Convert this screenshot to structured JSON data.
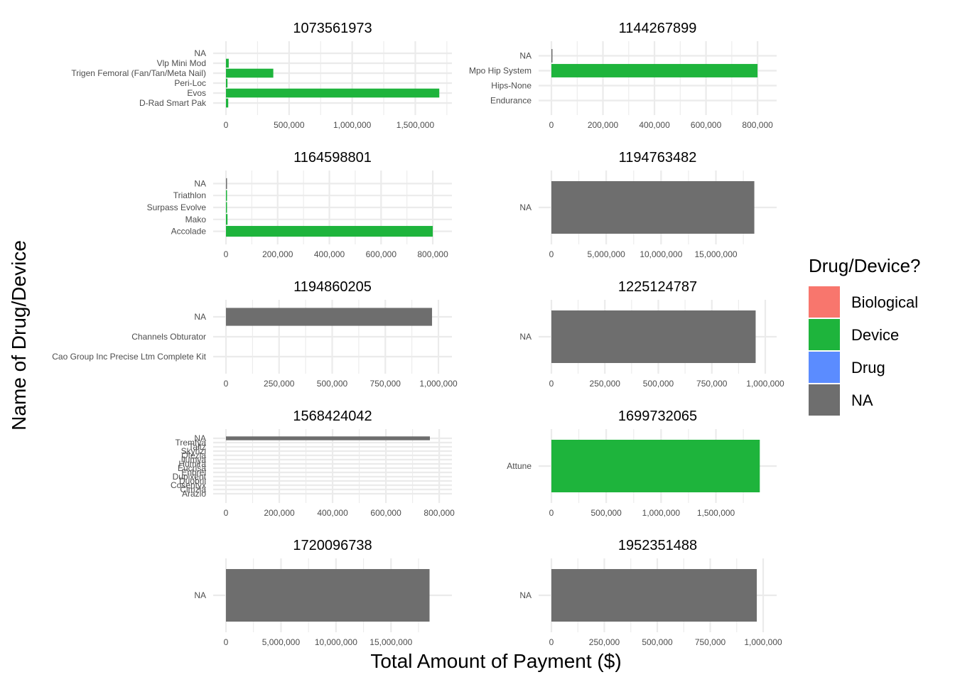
{
  "chart_data": {
    "type": "bar",
    "orientation": "horizontal",
    "xlabel": "Total Amount of Payment ($)",
    "ylabel": "Name of Drug/Device",
    "legend": {
      "title": "Drug/Device?",
      "position": "right",
      "items": [
        {
          "label": "Biological",
          "color": "#F8766D"
        },
        {
          "label": "Device",
          "color": "#1EB43C"
        },
        {
          "label": "Drug",
          "color": "#5B8CFF"
        },
        {
          "label": "NA",
          "color": "#6E6E6E"
        }
      ]
    },
    "grid": true,
    "panels": [
      {
        "title": "1073561973",
        "xlim": [
          0,
          1700000
        ],
        "ticks": [
          0,
          500000,
          1000000,
          1500000
        ],
        "tick_labels": [
          "0",
          "500,000",
          "1,000,000",
          "1,500,000"
        ],
        "bars": [
          {
            "category": "NA",
            "value": 0,
            "type": "NA"
          },
          {
            "category": "Vlp Mini Mod",
            "value": 22000,
            "type": "Device"
          },
          {
            "category": "Trigen Femoral (Fan/Tan/Meta Nail)",
            "value": 375000,
            "type": "Device"
          },
          {
            "category": "Peri-Loc",
            "value": 12000,
            "type": "Device"
          },
          {
            "category": "Evos",
            "value": 1690000,
            "type": "Device"
          },
          {
            "category": "D-Rad Smart Pak",
            "value": 18000,
            "type": "Device"
          }
        ]
      },
      {
        "title": "1144267899",
        "xlim": [
          0,
          830000
        ],
        "ticks": [
          0,
          200000,
          400000,
          600000,
          800000
        ],
        "tick_labels": [
          "0",
          "200,000",
          "400,000",
          "600,000",
          "800,000"
        ],
        "bars": [
          {
            "category": "NA",
            "value": 2000,
            "type": "NA"
          },
          {
            "category": "Mpo Hip System",
            "value": 800000,
            "type": "Device"
          },
          {
            "category": "Hips-None",
            "value": 0,
            "type": "Device"
          },
          {
            "category": "Endurance",
            "value": 0,
            "type": "Device"
          }
        ]
      },
      {
        "title": "1164598801",
        "xlim": [
          0,
          830000
        ],
        "ticks": [
          0,
          200000,
          400000,
          600000,
          800000
        ],
        "tick_labels": [
          "0",
          "200,000",
          "400,000",
          "600,000",
          "800,000"
        ],
        "bars": [
          {
            "category": "NA",
            "value": 1000,
            "type": "NA"
          },
          {
            "category": "Triathlon",
            "value": 3000,
            "type": "Device"
          },
          {
            "category": "Surpass Evolve",
            "value": 4000,
            "type": "Device"
          },
          {
            "category": "Mako",
            "value": 6000,
            "type": "Device"
          },
          {
            "category": "Accolade",
            "value": 800000,
            "type": "Device"
          }
        ]
      },
      {
        "title": "1194763482",
        "xlim": [
          0,
          19500000
        ],
        "ticks": [
          0,
          5000000,
          10000000,
          15000000
        ],
        "tick_labels": [
          "0",
          "5,000,000",
          "10,000,000",
          "15,000,000"
        ],
        "bars": [
          {
            "category": "NA",
            "value": 18500000,
            "type": "NA"
          }
        ]
      },
      {
        "title": "1194860205",
        "xlim": [
          0,
          1010000
        ],
        "ticks": [
          0,
          250000,
          500000,
          750000,
          1000000
        ],
        "tick_labels": [
          "0",
          "250,000",
          "500,000",
          "750,000",
          "1,000,000"
        ],
        "bars": [
          {
            "category": "NA",
            "value": 970000,
            "type": "NA"
          },
          {
            "category": "Channels Obturator",
            "value": 0,
            "type": "Device"
          },
          {
            "category": "Cao Group Inc Precise Ltm Complete Kit",
            "value": 0,
            "type": "Device"
          }
        ]
      },
      {
        "title": "1225124787",
        "xlim": [
          0,
          1000000
        ],
        "ticks": [
          0,
          250000,
          500000,
          750000,
          1000000
        ],
        "tick_labels": [
          "0",
          "250,000",
          "500,000",
          "750,000",
          "1,000,000"
        ],
        "bars": [
          {
            "category": "NA",
            "value": 955000,
            "type": "NA"
          }
        ]
      },
      {
        "title": "1568424042",
        "xlim": [
          0,
          805000
        ],
        "ticks": [
          0,
          200000,
          400000,
          600000,
          800000
        ],
        "tick_labels": [
          "0",
          "200,000",
          "400,000",
          "600,000",
          "800,000"
        ],
        "bars": [
          {
            "category": "NA",
            "value": 765000,
            "type": "NA"
          },
          {
            "category": "Tremfya",
            "value": 0,
            "type": "Drug"
          },
          {
            "category": "Taltz",
            "value": 0,
            "type": "Drug"
          },
          {
            "category": "Skyrizi",
            "value": 0,
            "type": "Drug"
          },
          {
            "category": "Otezla",
            "value": 0,
            "type": "Drug"
          },
          {
            "category": "Ilumya",
            "value": 0,
            "type": "Drug"
          },
          {
            "category": "Humira",
            "value": 0,
            "type": "Drug"
          },
          {
            "category": "Eucrisa",
            "value": 0,
            "type": "Drug"
          },
          {
            "category": "Enbrel",
            "value": 0,
            "type": "Drug"
          },
          {
            "category": "Dupixent",
            "value": 0,
            "type": "Drug"
          },
          {
            "category": "Duobrii",
            "value": 0,
            "type": "Drug"
          },
          {
            "category": "Cosentyx",
            "value": 0,
            "type": "Drug"
          },
          {
            "category": "Cimzia",
            "value": 0,
            "type": "Drug"
          },
          {
            "category": "Arazlo",
            "value": 0,
            "type": "Drug"
          }
        ]
      },
      {
        "title": "1699732065",
        "xlim": [
          0,
          1950000
        ],
        "ticks": [
          0,
          500000,
          1000000,
          1500000
        ],
        "tick_labels": [
          "0",
          "500,000",
          "1,000,000",
          "1,500,000"
        ],
        "bars": [
          {
            "category": "Attune",
            "value": 1900000,
            "type": "Device"
          }
        ]
      },
      {
        "title": "1720096738",
        "xlim": [
          0,
          19500000
        ],
        "ticks": [
          0,
          5000000,
          10000000,
          15000000
        ],
        "tick_labels": [
          "0",
          "5,000,000",
          "10,000,000",
          "15,000,000"
        ],
        "bars": [
          {
            "category": "NA",
            "value": 18500000,
            "type": "NA"
          }
        ]
      },
      {
        "title": "1952351488",
        "xlim": [
          0,
          1010000
        ],
        "ticks": [
          0,
          250000,
          500000,
          750000,
          1000000
        ],
        "tick_labels": [
          "0",
          "250,000",
          "500,000",
          "750,000",
          "1,000,000"
        ],
        "bars": [
          {
            "category": "NA",
            "value": 970000,
            "type": "NA"
          }
        ]
      }
    ]
  }
}
